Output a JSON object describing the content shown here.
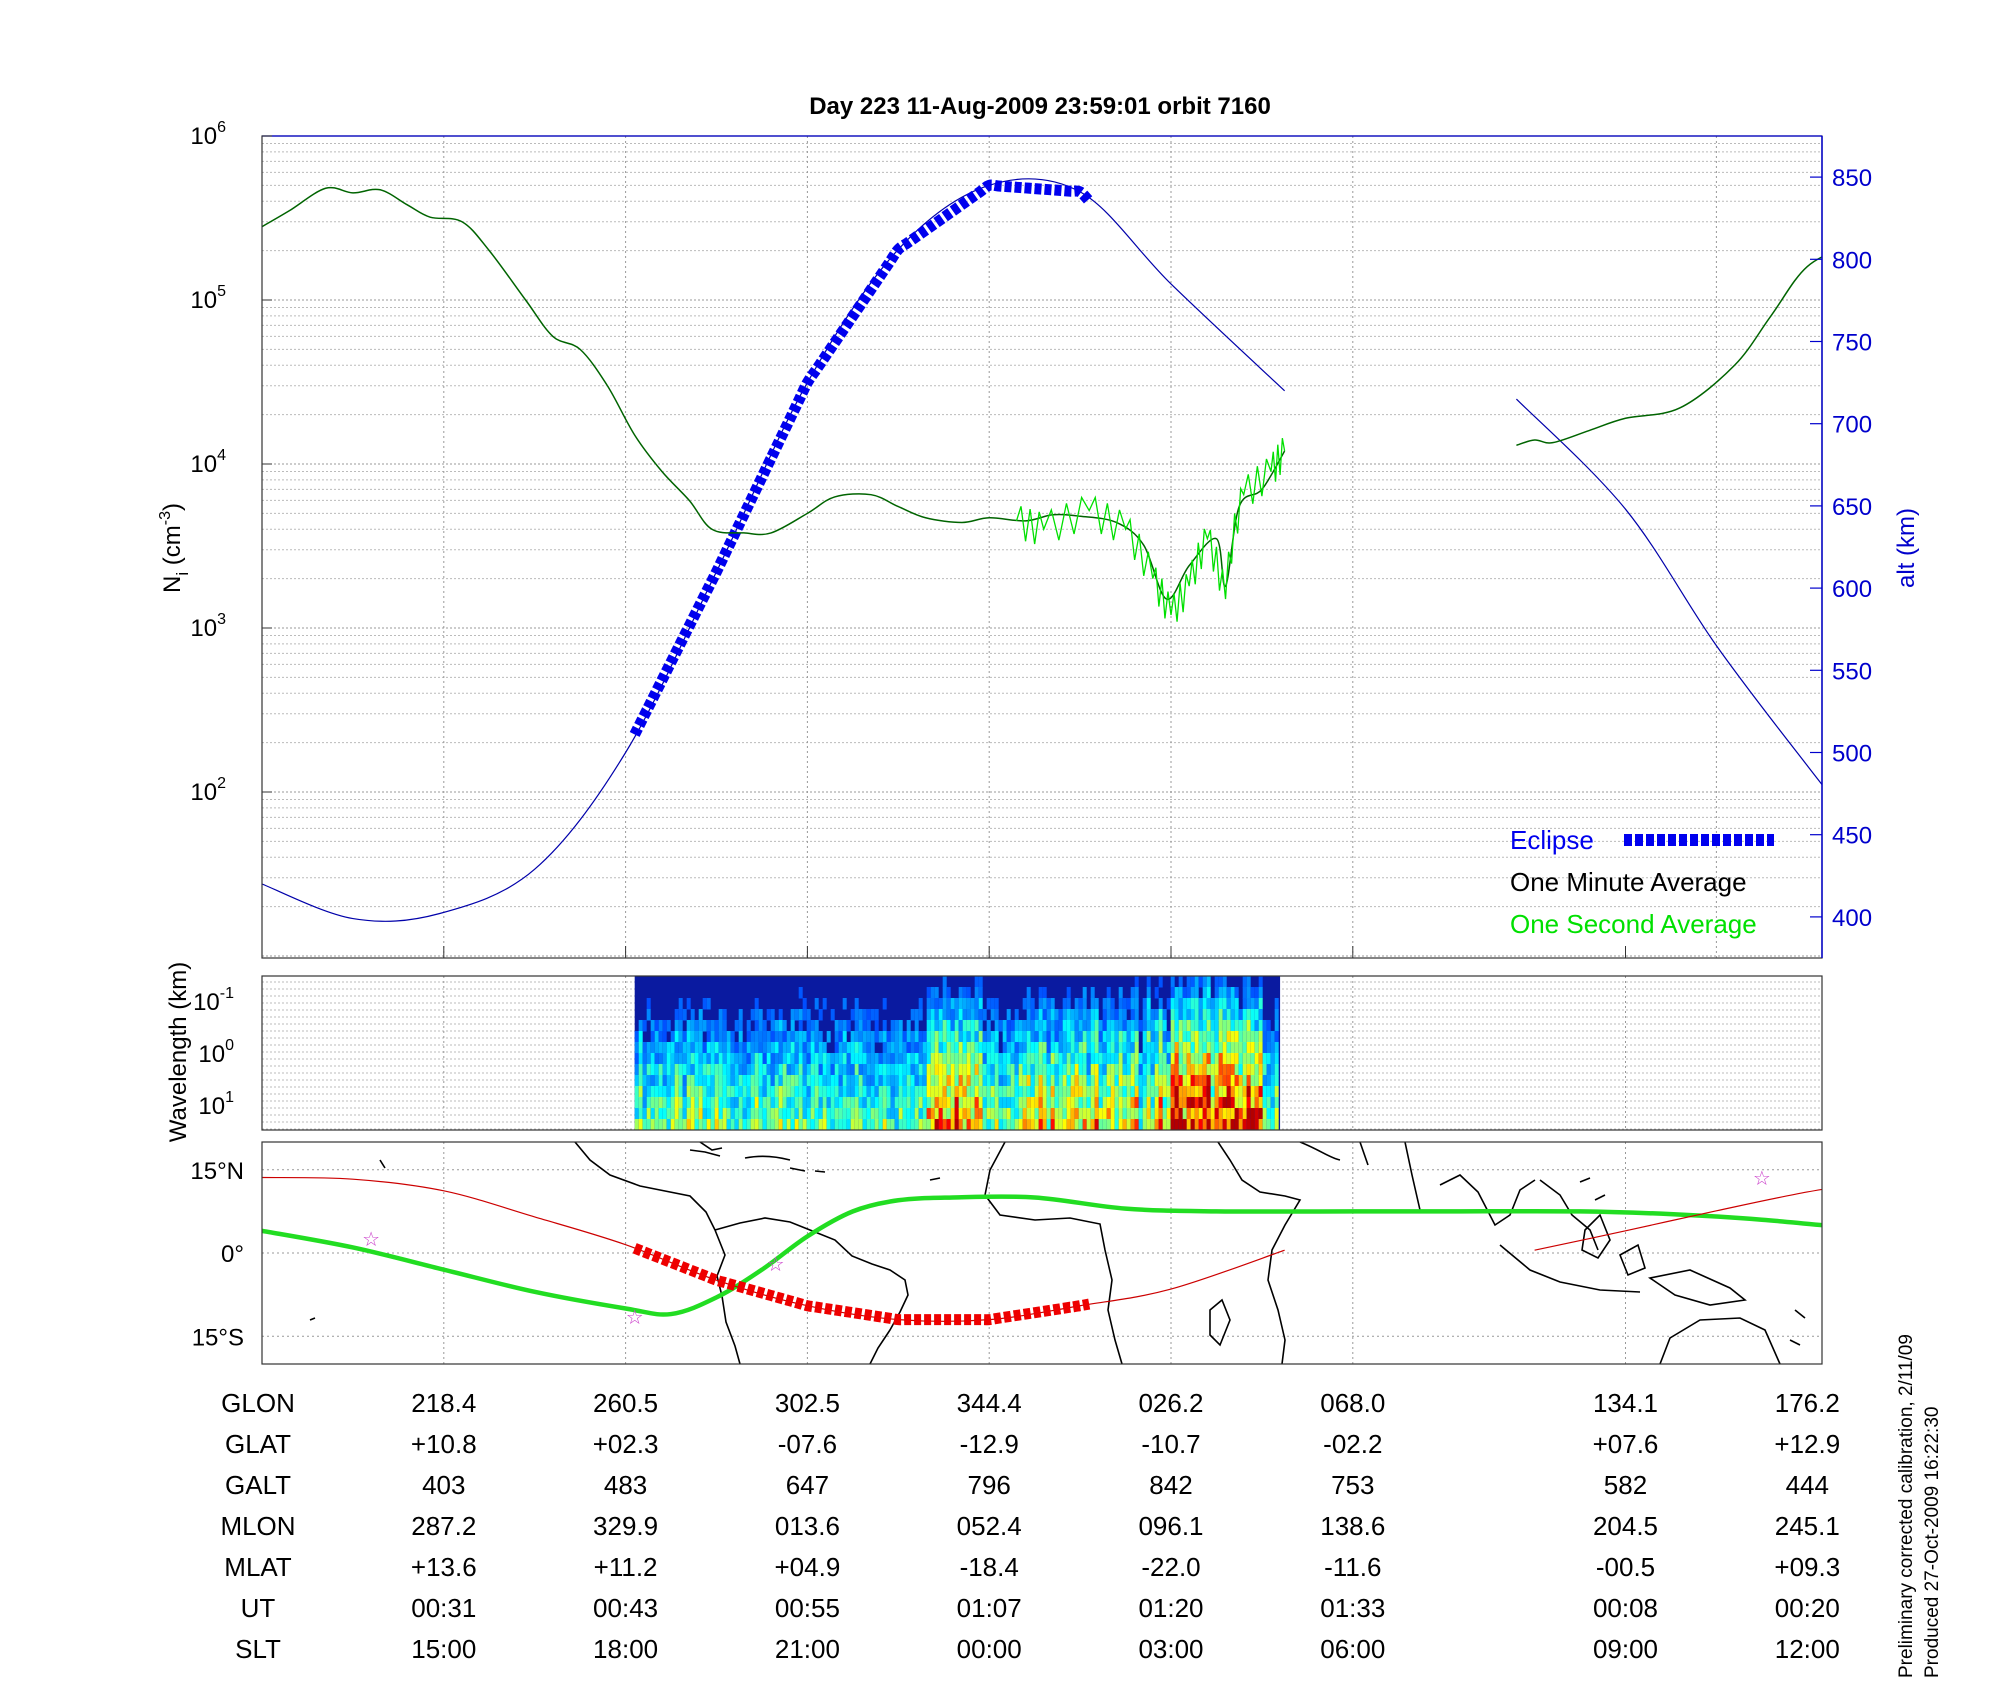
{
  "title": "Day 223  11-Aug-2009 23:59:01   orbit 7160",
  "side_notes": [
    "Preliminary corrected calibration, 2/11/09",
    "Produced 27-Oct-2009 16:22:30"
  ],
  "colors": {
    "axis_right": "#0000cc",
    "eclipse": "#0000ee",
    "one_minute": "#006400",
    "one_second": "#00e000",
    "altitude_line": "#0000aa",
    "track_eclipse": "#ee0000",
    "track_red": "#cc0000",
    "equator_track": "#22dd22",
    "star": "#cc44cc"
  },
  "chart_data": [
    {
      "type": "line",
      "ylabel_left": "Ni (cm-3)",
      "ylabel_right": "alt (km)",
      "yscale_left": "log",
      "ylim_left": [
        10,
        1000000
      ],
      "yticks_left": [
        "10^2",
        "10^3",
        "10^4",
        "10^5",
        "10^6"
      ],
      "ylim_right": [
        375,
        875
      ],
      "yticks_right": [
        400,
        450,
        500,
        550,
        600,
        650,
        700,
        750,
        800,
        850
      ],
      "grid": true,
      "legend": [
        "Eclipse",
        "One Minute Average",
        "One Second Average"
      ],
      "legend_placement": "bottom-right",
      "series": [
        {
          "name": "One Minute Average",
          "axis": "left",
          "segments": [
            [
              [
                0,
                280000
              ],
              [
                0.3,
                350000
              ],
              [
                0.7,
                480000
              ],
              [
                1.0,
                450000
              ],
              [
                1.3,
                470000
              ],
              [
                1.6,
                380000
              ],
              [
                1.85,
                320000
              ],
              [
                2.2,
                300000
              ],
              [
                2.5,
                200000
              ],
              [
                2.9,
                100000
              ],
              [
                3.2,
                60000
              ],
              [
                3.5,
                50000
              ],
              [
                3.8,
                30000
              ],
              [
                4.1,
                15000
              ],
              [
                4.4,
                9000
              ],
              [
                4.7,
                6000
              ],
              [
                4.95,
                4000
              ],
              [
                5.3,
                3800
              ],
              [
                5.6,
                3800
              ],
              [
                6.0,
                5000
              ],
              [
                6.3,
                6300
              ],
              [
                6.7,
                6500
              ],
              [
                7.0,
                5500
              ],
              [
                7.3,
                4700
              ],
              [
                7.7,
                4400
              ],
              [
                8.0,
                4700
              ],
              [
                8.4,
                4500
              ],
              [
                8.7,
                4900
              ],
              [
                9.0,
                4800
              ],
              [
                9.4,
                4400
              ],
              [
                9.7,
                3200
              ],
              [
                9.95,
                1500
              ],
              [
                10.2,
                2400
              ],
              [
                10.5,
                3500
              ],
              [
                10.6,
                1800
              ],
              [
                10.75,
                5500
              ],
              [
                11.0,
                7000
              ],
              [
                11.25,
                12000
              ]
            ],
            [
              [
                13.8,
                13000
              ],
              [
                14.0,
                14000
              ],
              [
                14.2,
                13500
              ],
              [
                14.6,
                16000
              ],
              [
                15.0,
                19000
              ],
              [
                15.6,
                22000
              ],
              [
                16.2,
                40000
              ],
              [
                16.6,
                80000
              ],
              [
                17.0,
                160000
              ],
              [
                17.5,
                220000
              ],
              [
                17.8,
                270000
              ]
            ]
          ]
        },
        {
          "name": "One Second Average",
          "axis": "left",
          "segments": [
            [
              [
                8.3,
                4500
              ],
              [
                8.6,
                4000
              ],
              [
                9.1,
                5200
              ],
              [
                9.5,
                4000
              ],
              [
                9.8,
                2000
              ],
              [
                10.0,
                1200
              ],
              [
                10.2,
                1800
              ],
              [
                10.4,
                3500
              ],
              [
                10.6,
                1500
              ],
              [
                10.8,
                6500
              ],
              [
                11.1,
                9000
              ],
              [
                11.25,
                12000
              ]
            ]
          ]
        },
        {
          "name": "altitude",
          "axis": "right",
          "points": [
            [
              0,
              420
            ],
            [
              1.0,
              399
            ],
            [
              1.95,
              402
            ],
            [
              3.0,
              429
            ],
            [
              4.0,
              500
            ],
            [
              5.0,
              610
            ],
            [
              6.0,
              725
            ],
            [
              7.0,
              806
            ],
            [
              8.0,
              845
            ],
            [
              9.0,
              841
            ],
            [
              10.0,
              785
            ],
            [
              11.25,
              720
            ],
            [
              13.8,
              715
            ],
            [
              15.0,
              648
            ],
            [
              16.0,
              565
            ],
            [
              17.0,
              492
            ],
            [
              17.5,
              458
            ],
            [
              17.8,
              445
            ]
          ]
        },
        {
          "name": "Eclipse",
          "axis": "right",
          "x_range": [
            4.1,
            9.1
          ]
        }
      ]
    },
    {
      "type": "heatmap",
      "ylabel": "Wavelength (km)",
      "yticks": [
        "10^-1",
        "10^0",
        "10^1"
      ],
      "x_range": [
        4.1,
        11.2
      ],
      "colormap": "jet"
    },
    {
      "type": "map",
      "yticks": [
        "15°N",
        "0°",
        "15°S"
      ],
      "ylim": [
        -20,
        20
      ],
      "series": [
        {
          "name": "magnetic equator",
          "points": [
            [
              0,
              4
            ],
            [
              1.0,
              1
            ],
            [
              2.0,
              -3
            ],
            [
              3.0,
              -7
            ],
            [
              4.0,
              -10
            ],
            [
              4.5,
              -11
            ],
            [
              5.0,
              -8
            ],
            [
              5.5,
              -3
            ],
            [
              6.0,
              3
            ],
            [
              6.5,
              7.5
            ],
            [
              7.0,
              9.5
            ],
            [
              7.6,
              10
            ],
            [
              8.5,
              10
            ],
            [
              9.5,
              8
            ],
            [
              10.5,
              7.5
            ],
            [
              12.0,
              7.5
            ],
            [
              13.0,
              7.5
            ],
            [
              14.5,
              7.5
            ],
            [
              15.5,
              7
            ],
            [
              16.5,
              6
            ],
            [
              17.8,
              4
            ]
          ]
        },
        {
          "name": "ground track",
          "points": [
            [
              0,
              13.6
            ],
            [
              1.0,
              13.3
            ],
            [
              2.0,
              11.2
            ],
            [
              3.0,
              6.5
            ],
            [
              4.0,
              1.5
            ],
            [
              5.0,
              -4.9
            ],
            [
              6.0,
              -9.5
            ],
            [
              7.0,
              -12
            ],
            [
              8.0,
              -12
            ],
            [
              9.0,
              -9.5
            ],
            [
              10.0,
              -6.5
            ],
            [
              11.25,
              0.5
            ]
          ]
        },
        {
          "name": "ground track (continued)",
          "points": [
            [
              14.0,
              0.5
            ],
            [
              15.0,
              4
            ],
            [
              16.0,
              7.6
            ],
            [
              17.0,
              11
            ],
            [
              17.8,
              13
            ]
          ]
        },
        {
          "name": "eclipse track",
          "x_range": [
            4.1,
            9.1
          ]
        }
      ],
      "stars": [
        [
          1.2,
          2.5
        ],
        [
          4.1,
          -11.5
        ],
        [
          5.65,
          -2
        ],
        [
          16.5,
          13.5
        ],
        [
          17.5,
          9.5
        ]
      ]
    }
  ],
  "ephemeris": {
    "row_labels": [
      "GLON",
      "GLAT",
      "GALT",
      "MLON",
      "MLAT",
      "UT",
      "SLT"
    ],
    "columns": [
      {
        "x": 2,
        "values": [
          "218.4",
          "+10.8",
          "403",
          "287.2",
          "+13.6",
          "00:31",
          "15:00"
        ]
      },
      {
        "x": 4,
        "values": [
          "260.5",
          "+02.3",
          "483",
          "329.9",
          "+11.2",
          "00:43",
          "18:00"
        ]
      },
      {
        "x": 6,
        "values": [
          "302.5",
          "-07.6",
          "647",
          "013.6",
          "+04.9",
          "00:55",
          "21:00"
        ]
      },
      {
        "x": 8,
        "values": [
          "344.4",
          "-12.9",
          "796",
          "052.4",
          "-18.4",
          "01:07",
          "00:00"
        ]
      },
      {
        "x": 10,
        "values": [
          "026.2",
          "-10.7",
          "842",
          "096.1",
          "-22.0",
          "01:20",
          "03:00"
        ]
      },
      {
        "x": 12,
        "values": [
          "068.0",
          "-02.2",
          "753",
          "138.6",
          "-11.6",
          "01:33",
          "06:00"
        ]
      },
      {
        "x": 15,
        "values": [
          "134.1",
          "+07.6",
          "582",
          "204.5",
          "-00.5",
          "00:08",
          "09:00"
        ]
      },
      {
        "x": 17,
        "values": [
          "176.2",
          "+12.9",
          "444",
          "245.1",
          "+09.3",
          "00:20",
          "12:00"
        ]
      }
    ]
  }
}
